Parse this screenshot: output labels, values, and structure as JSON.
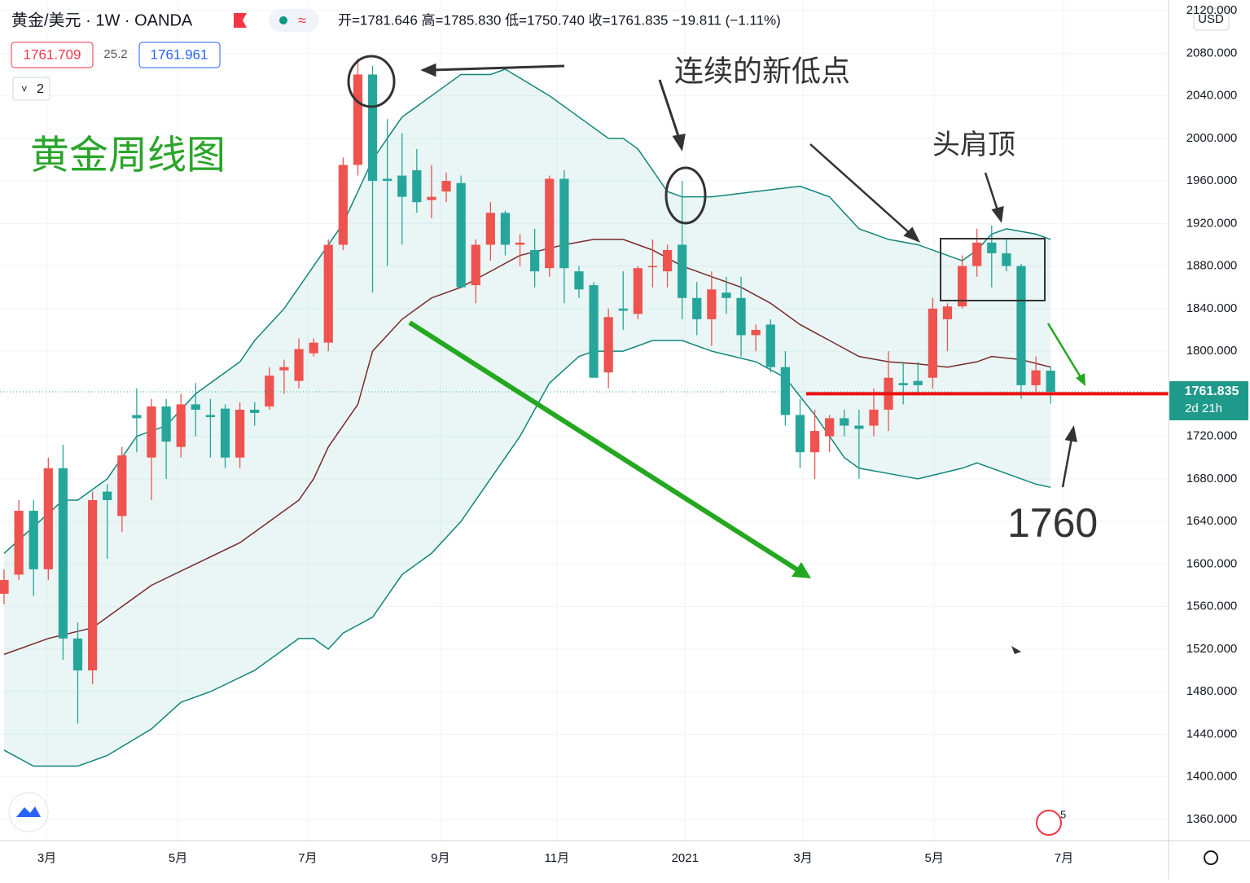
{
  "header": {
    "symbol": "黄金/美元 · 1W · OANDA",
    "ohlc_text": "开=1781.646  高=1785.830  低=1750.740  收=1761.835  −19.811 (−1.11%)",
    "sell": "1761.709",
    "spread": "25.2",
    "buy": "1761.961",
    "indicators": "2",
    "currency": "USD",
    "badge": "5"
  },
  "chart_data": {
    "type": "candlestick",
    "up_color": "#ef5350",
    "down_color": "#26a69a",
    "grid": true,
    "xlim": [
      -0.276,
      79
    ],
    "ylim": [
      1340,
      2130
    ],
    "xticks": [
      {
        "value": 2.9,
        "label": "3月"
      },
      {
        "value": 11.8,
        "label": "5月"
      },
      {
        "value": 20.6,
        "label": "7月"
      },
      {
        "value": 29.6,
        "label": "9月"
      },
      {
        "value": 37.5,
        "label": "11月"
      },
      {
        "value": 46.2,
        "label": "2021"
      },
      {
        "value": 54.2,
        "label": "3月"
      },
      {
        "value": 63.1,
        "label": "5月"
      },
      {
        "value": 71.9,
        "label": "7月"
      }
    ],
    "yticks": [
      {
        "value": 2120,
        "label": "2120.000"
      },
      {
        "value": 2080,
        "label": "2080.000"
      },
      {
        "value": 2040,
        "label": "2040.000"
      },
      {
        "value": 2000,
        "label": "2000.000"
      },
      {
        "value": 1960,
        "label": "1960.000"
      },
      {
        "value": 1920,
        "label": "1920.000"
      },
      {
        "value": 1880,
        "label": "1880.000"
      },
      {
        "value": 1840,
        "label": "1840.000"
      },
      {
        "value": 1800,
        "label": "1800.000"
      },
      {
        "value": 1720,
        "label": "1720.000"
      },
      {
        "value": 1680,
        "label": "1680.000"
      },
      {
        "value": 1640,
        "label": "1640.000"
      },
      {
        "value": 1600,
        "label": "1600.000"
      },
      {
        "value": 1560,
        "label": "1560.000"
      },
      {
        "value": 1520,
        "label": "1520.000"
      },
      {
        "value": 1480,
        "label": "1480.000"
      },
      {
        "value": 1440,
        "label": "1440.000"
      },
      {
        "value": 1400,
        "label": "1400.000"
      },
      {
        "value": 1360,
        "label": "1360.000"
      }
    ],
    "open": [
      1572,
      1590,
      1650,
      1595,
      1690,
      1530,
      1500,
      1668,
      1645,
      1740,
      1700,
      1748,
      1710,
      1750,
      1740,
      1746,
      1700,
      1745,
      1748,
      1782,
      1772,
      1798,
      1808,
      1900,
      1975,
      2060,
      1962,
      1965,
      1970,
      1942,
      1950,
      1958,
      1862,
      1900,
      1930,
      1900,
      1895,
      1878,
      1962,
      1875,
      1862,
      1780,
      1840,
      1835,
      1880,
      1875,
      1900,
      1850,
      1830,
      1855,
      1850,
      1815,
      1825,
      1785,
      1740,
      1705,
      1720,
      1737,
      1730,
      1730,
      1745,
      1770,
      1772,
      1775,
      1830,
      1842,
      1880,
      1902,
      1892,
      1880,
      1768,
      1781.646
    ],
    "high": [
      1595,
      1660,
      1660,
      1700,
      1712,
      1545,
      1668,
      1675,
      1710,
      1765,
      1755,
      1755,
      1760,
      1770,
      1755,
      1750,
      1752,
      1752,
      1785,
      1792,
      1812,
      1812,
      1905,
      1982,
      2075,
      2068,
      2018,
      2005,
      1990,
      1975,
      1968,
      1965,
      1905,
      1940,
      1932,
      1910,
      1915,
      1965,
      1970,
      1880,
      1865,
      1840,
      1875,
      1880,
      1905,
      1900,
      1960,
      1865,
      1875,
      1870,
      1870,
      1825,
      1830,
      1800,
      1755,
      1745,
      1740,
      1745,
      1745,
      1765,
      1800,
      1790,
      1790,
      1850,
      1845,
      1890,
      1915,
      1918,
      1905,
      1882,
      1795,
      1785.83
    ],
    "low": [
      1562,
      1585,
      1570,
      1585,
      1510,
      1450,
      1487,
      1605,
      1630,
      1705,
      1660,
      1680,
      1700,
      1720,
      1700,
      1690,
      1690,
      1730,
      1745,
      1760,
      1765,
      1795,
      1800,
      1895,
      1965,
      1855,
      1880,
      1900,
      1930,
      1925,
      1940,
      1860,
      1845,
      1885,
      1890,
      1880,
      1860,
      1870,
      1845,
      1850,
      1775,
      1765,
      1820,
      1830,
      1860,
      1860,
      1830,
      1815,
      1805,
      1835,
      1795,
      1800,
      1780,
      1730,
      1690,
      1680,
      1705,
      1720,
      1680,
      1720,
      1725,
      1750,
      1760,
      1765,
      1800,
      1840,
      1870,
      1860,
      1875,
      1755,
      1762,
      1750.74
    ],
    "close": [
      1585,
      1650,
      1595,
      1690,
      1530,
      1500,
      1660,
      1660,
      1702,
      1737,
      1748,
      1715,
      1750,
      1745,
      1738,
      1700,
      1745,
      1742,
      1777,
      1785,
      1802,
      1808,
      1900,
      1975,
      2060,
      1960,
      1960,
      1945,
      1940,
      1945,
      1960,
      1860,
      1900,
      1930,
      1900,
      1902,
      1875,
      1962,
      1878,
      1858,
      1775,
      1832,
      1838,
      1878,
      1880,
      1895,
      1850,
      1830,
      1858,
      1850,
      1815,
      1820,
      1785,
      1740,
      1705,
      1725,
      1737,
      1730,
      1727,
      1745,
      1775,
      1768,
      1768,
      1840,
      1842,
      1880,
      1902,
      1892,
      1880,
      1768,
      1782,
      1761.835
    ],
    "bands": [
      {
        "color": "#12857a",
        "x": [
          0,
          4,
          5,
          7,
          8,
          9,
          11,
          13,
          16,
          17,
          19,
          20,
          21,
          23,
          25,
          26,
          27,
          29,
          31,
          33,
          34,
          37,
          39,
          41,
          42,
          43,
          45,
          46,
          48,
          51,
          54,
          56,
          58,
          60,
          62,
          65,
          66,
          67,
          68,
          70,
          71
        ],
        "values": [
          1610,
          1660,
          1660,
          1680,
          1700,
          1720,
          1730,
          1760,
          1790,
          1810,
          1840,
          1860,
          1880,
          1920,
          1980,
          2000,
          2020,
          2040,
          2060,
          2060,
          2065,
          2040,
          2020,
          2000,
          2000,
          1990,
          1950,
          1945,
          1945,
          1950,
          1955,
          1945,
          1915,
          1905,
          1900,
          1885,
          1895,
          1910,
          1915,
          1910,
          1905
        ]
      },
      {
        "color": "#7a2a2a",
        "x": [
          0,
          3,
          6,
          8,
          10,
          13,
          16,
          18,
          20,
          21,
          22,
          24,
          25,
          27,
          29,
          31,
          33,
          35,
          38,
          40,
          42,
          44,
          46,
          48,
          50,
          52,
          54,
          56,
          58,
          60,
          62,
          64,
          66,
          67,
          69,
          71
        ],
        "values": [
          1515,
          1530,
          1540,
          1560,
          1580,
          1600,
          1620,
          1640,
          1660,
          1680,
          1710,
          1750,
          1800,
          1830,
          1850,
          1860,
          1875,
          1890,
          1900,
          1905,
          1905,
          1895,
          1880,
          1870,
          1860,
          1845,
          1825,
          1810,
          1795,
          1790,
          1788,
          1785,
          1790,
          1795,
          1792,
          1785
        ]
      },
      {
        "color": "#12857a",
        "x": [
          0,
          2,
          5,
          7,
          10,
          12,
          14,
          17,
          19,
          20,
          21,
          22,
          23,
          25,
          26,
          27,
          29,
          31,
          33,
          35,
          37,
          39,
          40,
          42,
          44,
          46,
          48,
          51,
          53,
          55,
          57,
          58,
          60,
          62,
          65,
          66,
          68,
          70,
          71
        ],
        "values": [
          1425,
          1410,
          1410,
          1420,
          1445,
          1470,
          1480,
          1500,
          1520,
          1530,
          1530,
          1520,
          1535,
          1550,
          1570,
          1590,
          1610,
          1640,
          1680,
          1720,
          1770,
          1795,
          1800,
          1800,
          1810,
          1810,
          1800,
          1790,
          1775,
          1740,
          1700,
          1690,
          1685,
          1680,
          1690,
          1695,
          1685,
          1675,
          1672
        ]
      }
    ],
    "last_price_label": "1761.835",
    "countdown": "2d 21h",
    "level": 1760,
    "annotations": {
      "chart_title": "黄金周线图",
      "lows": "连续的新低点",
      "head_shoulders": "头肩顶"
    }
  }
}
